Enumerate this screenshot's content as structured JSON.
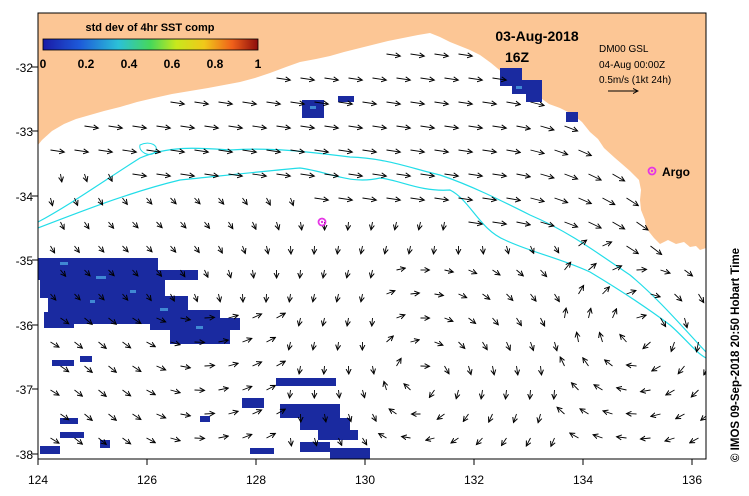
{
  "header": {
    "date": "03-Aug-2018",
    "time": "16Z",
    "model": "DM00 GSL",
    "model_time": "04-Aug 00:00Z",
    "scale_label": "0.5m/s (1kt 24h)"
  },
  "colorbar": {
    "title": "std dev of 4hr SST comp",
    "ticks": [
      "0",
      "0.2",
      "0.4",
      "0.6",
      "0.8",
      "1"
    ],
    "range": [
      0,
      1
    ]
  },
  "axes": {
    "lon_ticks": [
      "124",
      "126",
      "128",
      "130",
      "132",
      "134",
      "136"
    ],
    "lat_ticks": [
      "-32",
      "-33",
      "-34",
      "-35",
      "-36",
      "-37",
      "-38"
    ],
    "lon_range": [
      124,
      136.5
    ],
    "lat_range": [
      -38,
      -31.3
    ]
  },
  "markers": [
    {
      "label": "Argo",
      "lon": 135.5,
      "lat": -33.62
    },
    {
      "label": "",
      "lon": 129.3,
      "lat": -34.42
    }
  ],
  "credit": "© IMOS 09-Sep-2018 20:50 Hobart Time",
  "colors": {
    "land": "#fcc695",
    "ocean": "#ffffff",
    "contour": "#22dde8",
    "marker": "#e535e5",
    "arrow": "#000000"
  }
}
